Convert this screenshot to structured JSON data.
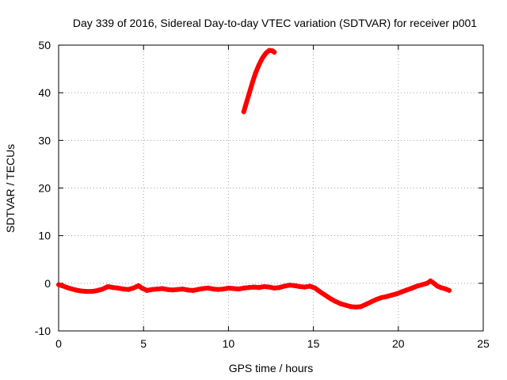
{
  "chart_data": {
    "type": "line",
    "title": "Day 339 of 2016, Sidereal Day-to-day VTEC variation (SDTVAR) for receiver p001",
    "xlabel": "GPS time / hours",
    "ylabel": "SDTVAR / TECUs",
    "xlim": [
      0,
      25
    ],
    "ylim": [
      -10,
      50
    ],
    "xticks": [
      0,
      5,
      10,
      15,
      20,
      25
    ],
    "yticks": [
      -10,
      0,
      10,
      20,
      30,
      40,
      50
    ],
    "grid": true,
    "legend": "none",
    "series": [
      {
        "name": "satellite arc (low)",
        "color": "#ff0000",
        "x": [
          0.0,
          0.2,
          0.5,
          0.8,
          1.0,
          1.3,
          1.6,
          2.0,
          2.3,
          2.6,
          2.9,
          3.2,
          3.5,
          3.8,
          4.1,
          4.4,
          4.7,
          4.9,
          5.2,
          5.5,
          5.8,
          6.1,
          6.4,
          6.7,
          7.0,
          7.3,
          7.6,
          7.9,
          8.2,
          8.5,
          8.8,
          9.1,
          9.4,
          9.7,
          10.0,
          10.3,
          10.6,
          10.9,
          11.2,
          11.5,
          11.8,
          12.1,
          12.4,
          12.7,
          13.0,
          13.3,
          13.6,
          13.9,
          14.2,
          14.5,
          14.8,
          15.1,
          15.4,
          15.7,
          16.0,
          16.3,
          16.6,
          16.9,
          17.2,
          17.5,
          17.8,
          18.1,
          18.4,
          18.7,
          19.0,
          19.3,
          19.6,
          19.9,
          20.2,
          20.5,
          20.8,
          21.1,
          21.4,
          21.7,
          21.9,
          22.1,
          22.3,
          22.5,
          22.8,
          23.0
        ],
        "y": [
          -0.3,
          -0.5,
          -0.9,
          -1.2,
          -1.4,
          -1.6,
          -1.7,
          -1.7,
          -1.5,
          -1.2,
          -0.7,
          -0.9,
          -1.0,
          -1.2,
          -1.3,
          -1.0,
          -0.5,
          -1.0,
          -1.5,
          -1.3,
          -1.2,
          -1.1,
          -1.3,
          -1.4,
          -1.3,
          -1.2,
          -1.4,
          -1.5,
          -1.3,
          -1.1,
          -1.0,
          -1.2,
          -1.3,
          -1.2,
          -1.0,
          -1.1,
          -1.2,
          -1.0,
          -0.9,
          -0.8,
          -0.9,
          -0.7,
          -0.8,
          -1.0,
          -0.9,
          -0.6,
          -0.4,
          -0.5,
          -0.7,
          -0.8,
          -0.6,
          -1.0,
          -1.8,
          -2.5,
          -3.2,
          -3.8,
          -4.3,
          -4.6,
          -4.9,
          -5.0,
          -4.9,
          -4.4,
          -3.9,
          -3.4,
          -3.0,
          -2.8,
          -2.5,
          -2.2,
          -1.8,
          -1.4,
          -1.0,
          -0.6,
          -0.3,
          0.0,
          0.5,
          0.0,
          -0.6,
          -0.9,
          -1.2,
          -1.5
        ]
      },
      {
        "name": "satellite arc (high)",
        "color": "#ff0000",
        "x": [
          10.9,
          11.0,
          11.2,
          11.4,
          11.6,
          11.8,
          12.0,
          12.2,
          12.4,
          12.6,
          12.7
        ],
        "y": [
          36.0,
          37.2,
          39.6,
          42.0,
          44.2,
          45.9,
          47.3,
          48.3,
          48.9,
          48.8,
          48.5
        ]
      }
    ]
  }
}
